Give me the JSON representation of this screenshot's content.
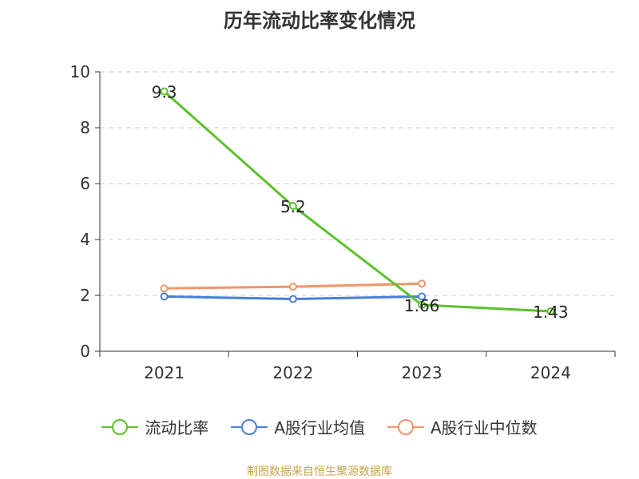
{
  "chart_data": {
    "type": "line",
    "title": "历年流动比率变化情况",
    "categories": [
      "2021",
      "2022",
      "2023",
      "2024"
    ],
    "ylim": [
      0,
      10
    ],
    "yticks": [
      0,
      2,
      4,
      6,
      8,
      10
    ],
    "grid": true,
    "legend_position": "bottom",
    "series": [
      {
        "name": "流动比率",
        "color": "#5bc12c",
        "values": [
          9.3,
          5.2,
          1.66,
          1.43
        ],
        "labels": [
          "9.3",
          "5.2",
          "1.66",
          "1.43"
        ]
      },
      {
        "name": "A股行业均值",
        "color": "#4a7fd8",
        "values": [
          1.96,
          1.87,
          1.96,
          null
        ]
      },
      {
        "name": "A股行业中位数",
        "color": "#f0956a",
        "values": [
          2.25,
          2.31,
          2.42,
          null
        ]
      }
    ]
  },
  "source": "制图数据来自恒生聚源数据库"
}
